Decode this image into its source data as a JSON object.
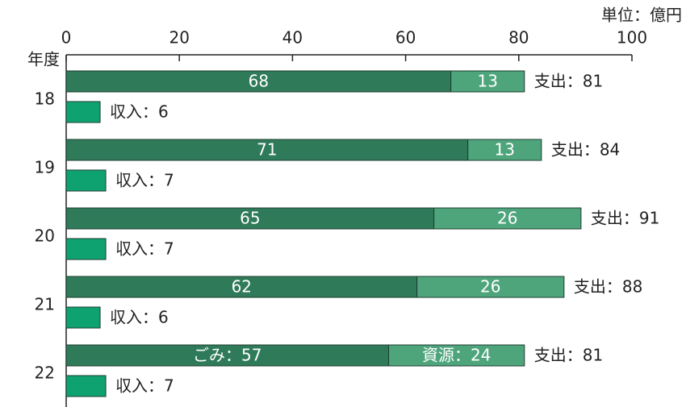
{
  "chart_data": {
    "type": "bar",
    "unit_label": "単位：億円",
    "category_axis_label": "年度",
    "categories": [
      "18",
      "19",
      "20",
      "21",
      "22"
    ],
    "series": [
      {
        "color": "#2f7a59",
        "group": "expense",
        "values": [
          68,
          71,
          65,
          62,
          57
        ],
        "value_labels": [
          "68",
          "71",
          "65",
          "62",
          "ごみ：57"
        ]
      },
      {
        "color": "#4ea57c",
        "group": "expense",
        "values": [
          13,
          13,
          26,
          26,
          24
        ],
        "value_labels": [
          "13",
          "13",
          "26",
          "26",
          "資源：24"
        ]
      },
      {
        "color": "#0ea271",
        "group": "income",
        "values": [
          6,
          7,
          7,
          6,
          7
        ],
        "value_labels": [
          "収入：6",
          "収入：7",
          "収入：7",
          "収入：6",
          "収入：7"
        ]
      }
    ],
    "total_labels": [
      "支出：81",
      "支出：84",
      "支出：91",
      "支出：88",
      "支出：81"
    ],
    "xlim": [
      0,
      100
    ],
    "xticks": [
      0,
      20,
      40,
      60,
      80,
      100
    ]
  }
}
